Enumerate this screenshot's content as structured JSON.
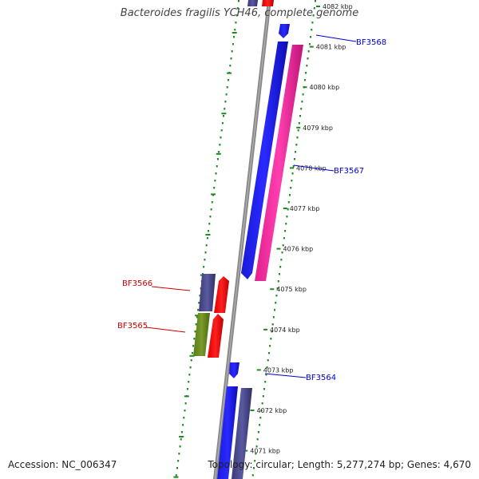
{
  "title": "Bacteroides fragilis YCH46, complete genome",
  "footer": {
    "accession": "Accession: NC_006347",
    "summary": "Topology: circular; Length: 5,277,274 bp; Genes: 4,670"
  },
  "colors": {
    "backbone": "#8a8a8a",
    "tick_dots": "#1f8a1f",
    "forward_label": "#0000cc",
    "reverse_label": "#cc0000"
  },
  "scale": {
    "unit": "kbp",
    "ticks": [
      4082,
      4081,
      4080,
      4079,
      4078,
      4077,
      4076,
      4075,
      4074,
      4073,
      4072,
      4071
    ]
  },
  "labels": [
    {
      "id": "BF3568",
      "text": "BF3568",
      "strand": "forward"
    },
    {
      "id": "BF3567",
      "text": "BF3567",
      "strand": "forward"
    },
    {
      "id": "BF3566",
      "text": "BF3566",
      "strand": "reverse"
    },
    {
      "id": "BF3565",
      "text": "BF3565",
      "strand": "reverse"
    },
    {
      "id": "BF3564",
      "text": "BF3564",
      "strand": "forward"
    }
  ]
}
